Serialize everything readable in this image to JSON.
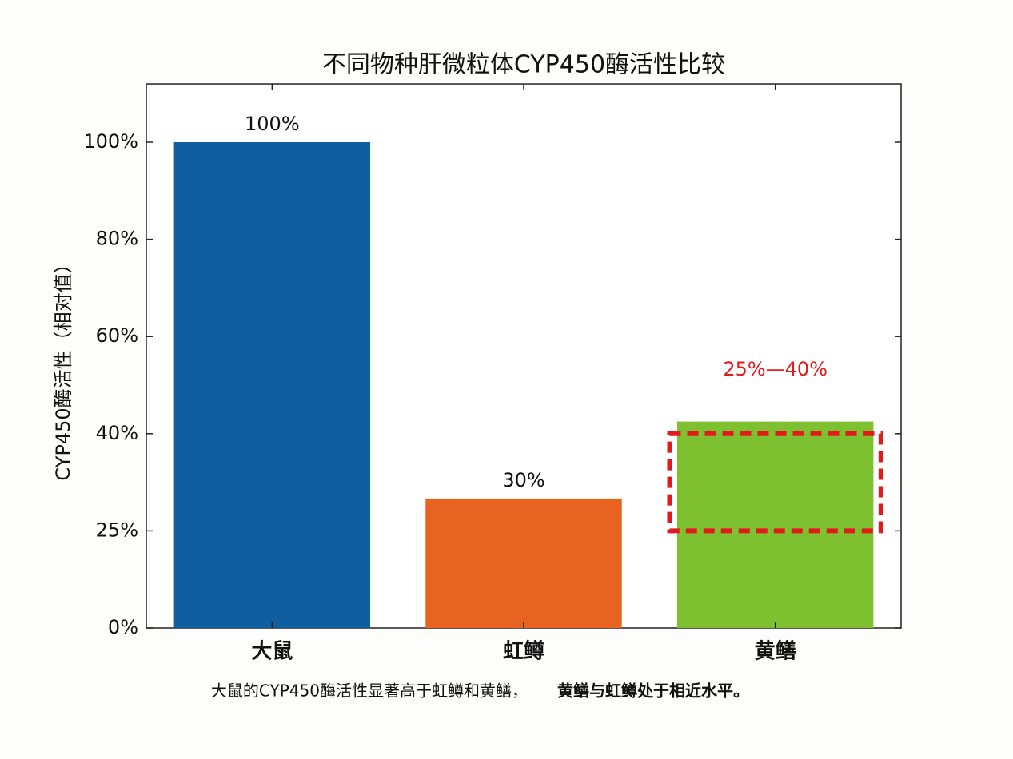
{
  "chart_data": {
    "type": "bar",
    "title": "不同物种肝微粒体CYP450酶活性比较",
    "y_label": "CYP450酶活性（相对值）",
    "categories": [
      "大鼠",
      "虹鳟",
      "黄鳝"
    ],
    "values": [
      100,
      30,
      42.5
    ],
    "value_labels": [
      "100%",
      "30%",
      null
    ],
    "colors": [
      "#0f5fa0",
      "#e8631f",
      "#7dc130"
    ],
    "ylim": [
      0,
      112
    ],
    "yticks": [
      {
        "value": 0,
        "label": "0%"
      },
      {
        "value": 25,
        "label": "25%"
      },
      {
        "value": 40,
        "label": "40%"
      },
      {
        "value": 60,
        "label": "60%"
      },
      {
        "value": 80,
        "label": "80%"
      },
      {
        "value": 100,
        "label": "100%"
      }
    ],
    "annotation": {
      "text": "25%—40%",
      "range": [
        25,
        40
      ],
      "color": "#e31a1c"
    },
    "caption": [
      "大鼠的CYP450酶活性显著高于虹鳟和黄鳝，",
      "黄鳝与虹鳟处于相近水平。"
    ]
  }
}
